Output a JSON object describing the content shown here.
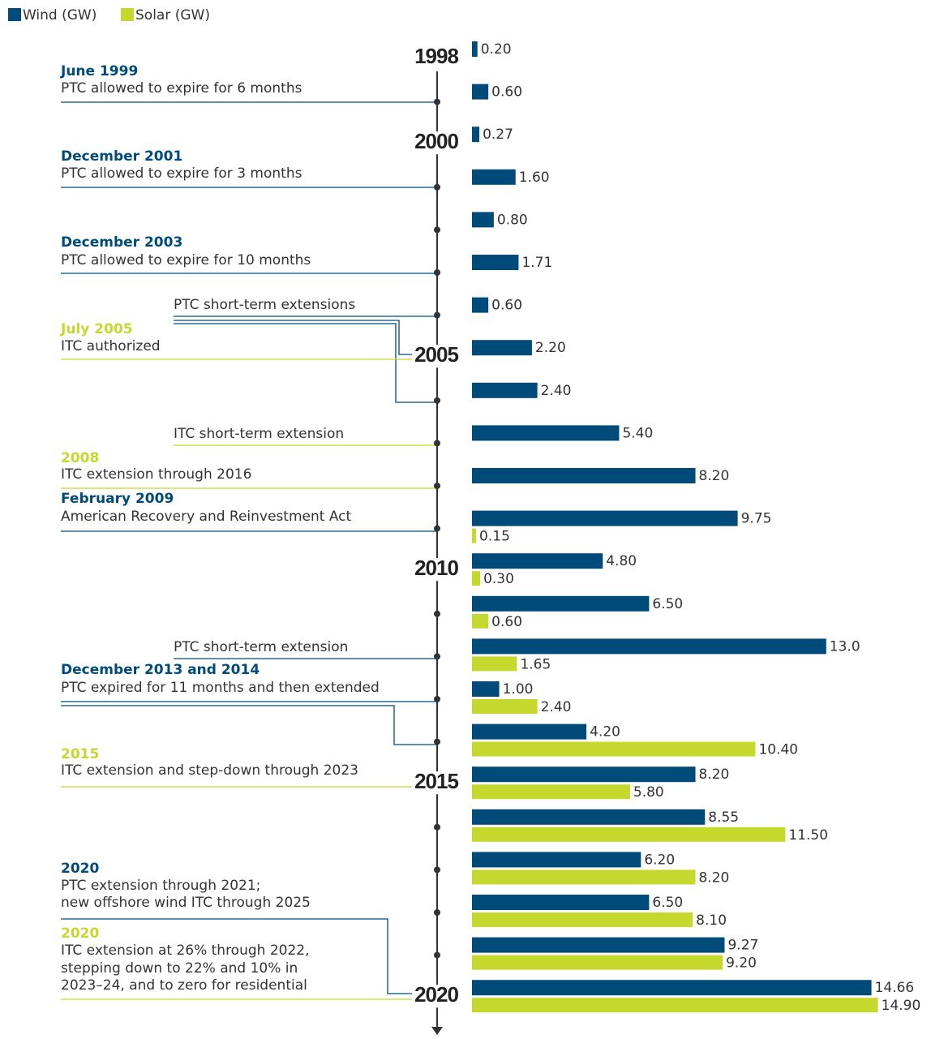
{
  "chart_data": {
    "type": "bar",
    "orientation": "horizontal",
    "categories": [
      "1998",
      null,
      "2000",
      null,
      null,
      null,
      null,
      "2005",
      null,
      null,
      null,
      null,
      "2010",
      null,
      null,
      null,
      null,
      "2015",
      null,
      null,
      null,
      null,
      "2020"
    ],
    "series": [
      {
        "name": "Wind (GW)",
        "color": "#004b7a",
        "values": [
          0.2,
          0.6,
          0.27,
          1.6,
          0.8,
          1.71,
          0.6,
          2.2,
          2.4,
          5.4,
          8.2,
          9.75,
          4.8,
          6.5,
          13.0,
          1.0,
          4.2,
          8.2,
          8.55,
          6.2,
          6.5,
          9.27,
          14.66
        ],
        "value_labels": [
          "0.20",
          "0.60",
          "0.27",
          "1.60",
          "0.80",
          "1.71",
          "0.60",
          "2.20",
          "2.40",
          "5.40",
          "8.20",
          "9.75",
          "4.80",
          "6.50",
          "13.0",
          "1.00",
          "4.20",
          "8.20",
          "8.55",
          "6.20",
          "6.50",
          "9.27",
          "14.66"
        ]
      },
      {
        "name": "Solar (GW)",
        "color": "#c5d82e",
        "values": [
          null,
          null,
          null,
          null,
          null,
          null,
          null,
          null,
          null,
          null,
          null,
          0.15,
          0.3,
          0.6,
          1.65,
          2.4,
          10.4,
          5.8,
          11.5,
          8.2,
          8.1,
          9.2,
          14.9
        ],
        "value_labels": [
          null,
          null,
          null,
          null,
          null,
          null,
          null,
          null,
          null,
          null,
          null,
          "0.15",
          "0.30",
          "0.60",
          "1.65",
          "2.40",
          "10.40",
          "5.80",
          "11.50",
          "8.20",
          "8.10",
          "9.20",
          "14.90"
        ]
      }
    ],
    "annotations": [
      {
        "title": "June 1999",
        "text": [
          "PTC allowed to expire for 6 months"
        ]
      },
      {
        "title": "December 2001",
        "text": [
          "PTC allowed to expire for 3 months"
        ]
      },
      {
        "title": "December 2003",
        "text": [
          "PTC allowed to expire for 10 months"
        ]
      },
      {
        "text": [
          "PTC short-term extensions"
        ]
      },
      {
        "title": "July 2005",
        "text": [
          "ITC authorized"
        ]
      },
      {
        "text": [
          "ITC short-term extension"
        ]
      },
      {
        "title": "2008",
        "text": [
          "ITC extension through 2016"
        ]
      },
      {
        "title": "February 2009",
        "text": [
          "American Recovery and Reinvestment Act"
        ]
      },
      {
        "text": [
          "PTC short-term extension"
        ]
      },
      {
        "title": "December 2013 and 2014",
        "text": [
          "PTC expired for 11 months and then extended"
        ]
      },
      {
        "title": "2015",
        "text": [
          "ITC extension and step-down through 2023"
        ]
      },
      {
        "title": "2020",
        "text": [
          "PTC extension through 2021;",
          "new offshore wind ITC through 2025"
        ]
      },
      {
        "title": "2020",
        "text": [
          "ITC extension at 26% through 2022,",
          "stepping down to 22% and 10% in",
          "2023–24, and to zero for residential"
        ]
      }
    ]
  }
}
